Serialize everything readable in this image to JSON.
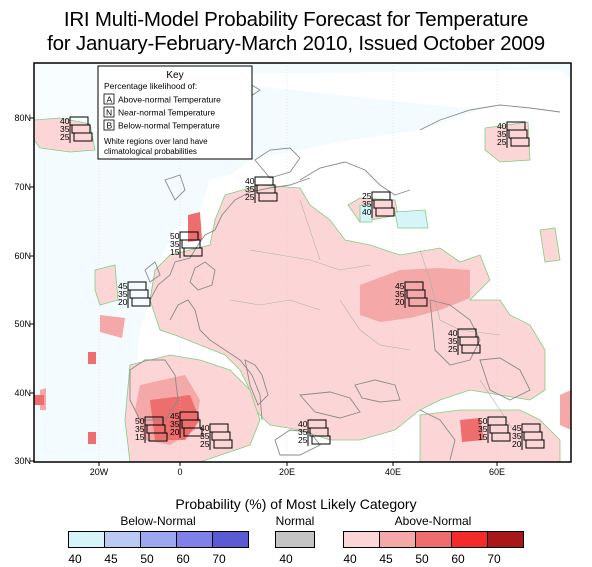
{
  "title_line1": "IRI Multi-Model Probability Forecast for Temperature",
  "title_line2": "for January-February-March 2010, Issued October 2009",
  "key": {
    "heading": "Key",
    "subheading": "Percentage likelihood of:",
    "items": [
      {
        "letter": "A",
        "text": "Above-normal Temperature"
      },
      {
        "letter": "N",
        "text": "Near-normal Temperature"
      },
      {
        "letter": "B",
        "text": "Below-normal Temperature"
      }
    ],
    "note_line1": "White regions over land have",
    "note_line2": "climatological probabilities"
  },
  "lat_labels": [
    "80N",
    "70N",
    "60N",
    "50N",
    "40N",
    "30N"
  ],
  "lon_labels": [
    "20W",
    "0",
    "20E",
    "40E",
    "60E"
  ],
  "probability_boxes": [
    {
      "A": "40",
      "N": "35",
      "B": "25"
    },
    {
      "A": "40",
      "N": "35",
      "B": "25"
    },
    {
      "A": "40",
      "N": "35",
      "B": "25"
    },
    {
      "A": "25",
      "N": "35",
      "B": "40"
    },
    {
      "A": "50",
      "N": "35",
      "B": "15"
    },
    {
      "A": "45",
      "N": "35",
      "B": "20"
    },
    {
      "A": "45",
      "N": "35",
      "B": "20"
    },
    {
      "A": "40",
      "N": "35",
      "B": "25"
    },
    {
      "A": "50",
      "N": "35",
      "B": "15"
    },
    {
      "A": "45",
      "N": "35",
      "B": "20"
    },
    {
      "A": "40",
      "N": "35",
      "B": "25"
    },
    {
      "A": "40",
      "N": "35",
      "B": "25"
    },
    {
      "A": "50",
      "N": "35",
      "B": "15"
    },
    {
      "A": "45",
      "N": "35",
      "B": "20"
    }
  ],
  "legend": {
    "title": "Probability (%) of Most Likely Category",
    "below_normal": {
      "label": "Below-Normal",
      "ticks": [
        "40",
        "45",
        "50",
        "60",
        "70"
      ],
      "colors": [
        "#d6f5f8",
        "#b9cbf5",
        "#9da6f0",
        "#7f81e8",
        "#5a5ad2"
      ]
    },
    "normal": {
      "label": "Normal",
      "ticks": [
        "40"
      ],
      "colors": [
        "#c4c4c4"
      ]
    },
    "above_normal": {
      "label": "Above-Normal",
      "ticks": [
        "40",
        "45",
        "50",
        "60",
        "70"
      ],
      "colors": [
        "#fcd6d6",
        "#f4a8a8",
        "#ee6e6e",
        "#f22a2a",
        "#a81818"
      ]
    }
  }
}
